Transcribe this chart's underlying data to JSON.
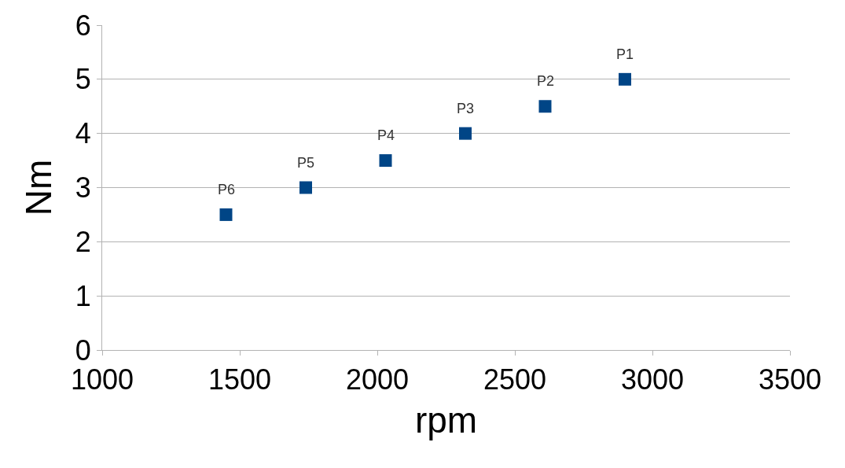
{
  "chart_data": {
    "type": "scatter",
    "xlabel": "rpm",
    "ylabel": "Nm",
    "x": [
      2900,
      2610,
      2320,
      2030,
      1740,
      1450
    ],
    "series": [
      {
        "color": "#004586",
        "values": [
          5,
          4.5,
          4,
          3.5,
          3,
          2.5
        ]
      }
    ],
    "xlim": [
      1000,
      3500
    ],
    "xticks": [
      1000,
      1500,
      2000,
      2500,
      3000,
      3500
    ],
    "ylim": [
      0,
      6
    ],
    "yticks": [
      0,
      1,
      2,
      3,
      4,
      5,
      6
    ],
    "grid": "y",
    "legend": false,
    "marker": "square",
    "annotations": [
      {
        "text": "P1",
        "x": 2900,
        "y": 5
      },
      {
        "text": "P2",
        "x": 2610,
        "y": 4.5
      },
      {
        "text": "P3",
        "x": 2320,
        "y": 4
      },
      {
        "text": "P4",
        "x": 2030,
        "y": 3.5
      },
      {
        "text": "P5",
        "x": 1740,
        "y": 3
      },
      {
        "text": "P6",
        "x": 1450,
        "y": 2.5
      }
    ]
  }
}
